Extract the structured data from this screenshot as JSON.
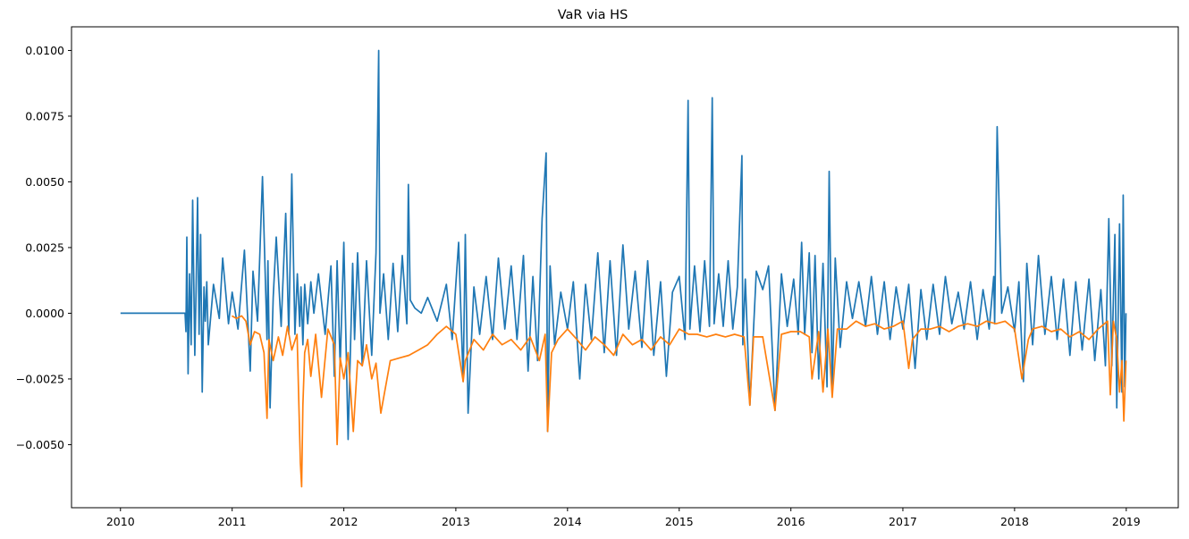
{
  "chart_data": {
    "type": "line",
    "title": "VaR via HS",
    "xlabel": "",
    "ylabel": "",
    "xlim": [
      "2009-07-25",
      "2019-06-20"
    ],
    "ylim": [
      -0.0074,
      0.0109
    ],
    "x_ticks": [
      "2010",
      "2011",
      "2012",
      "2013",
      "2014",
      "2015",
      "2016",
      "2017",
      "2018",
      "2019"
    ],
    "y_ticks": [
      "0.0100",
      "0.0075",
      "0.0050",
      "0.0025",
      "0.0000",
      "−0.0025",
      "−0.0050"
    ],
    "grid": false,
    "legend": "none",
    "series": [
      {
        "color": "#1f77b4",
        "x": [
          "2010-01-01",
          "2010-07-31",
          "2010-08-03",
          "2010-08-06",
          "2010-08-10",
          "2010-08-15",
          "2010-08-20",
          "2010-08-25",
          "2010-09-01",
          "2010-09-05",
          "2010-09-10",
          "2010-09-15",
          "2010-09-20",
          "2010-09-25",
          "2010-10-01",
          "2010-10-05",
          "2010-10-10",
          "2010-10-15",
          "2010-11-01",
          "2010-11-20",
          "2010-12-01",
          "2010-12-20",
          "2011-01-01",
          "2011-01-20",
          "2011-02-10",
          "2011-03-01",
          "2011-03-10",
          "2011-03-25",
          "2011-04-10",
          "2011-04-25",
          "2011-04-28",
          "2011-05-05",
          "2011-05-15",
          "2011-05-25",
          "2011-06-10",
          "2011-06-25",
          "2011-07-05",
          "2011-07-15",
          "2011-07-25",
          "2011-08-02",
          "2011-08-10",
          "2011-08-14",
          "2011-08-20",
          "2011-08-26",
          "2011-09-05",
          "2011-09-15",
          "2011-09-25",
          "2011-10-10",
          "2011-11-01",
          "2011-11-20",
          "2011-12-01",
          "2011-12-10",
          "2011-12-20",
          "2012-01-01",
          "2012-01-15",
          "2012-01-30",
          "2012-02-05",
          "2012-02-15",
          "2012-03-01",
          "2012-03-15",
          "2012-04-01",
          "2012-04-15",
          "2012-04-24",
          "2012-04-28",
          "2012-05-10",
          "2012-05-25",
          "2012-06-10",
          "2012-06-25",
          "2012-07-10",
          "2012-07-25",
          "2012-07-30",
          "2012-08-05",
          "2012-08-20",
          "2012-09-10",
          "2012-10-01",
          "2012-11-01",
          "2012-12-01",
          "2012-12-20",
          "2013-01-10",
          "2013-01-25",
          "2013-02-01",
          "2013-02-10",
          "2013-03-01",
          "2013-03-20",
          "2013-04-10",
          "2013-05-01",
          "2013-05-20",
          "2013-06-10",
          "2013-07-01",
          "2013-07-20",
          "2013-08-10",
          "2013-08-25",
          "2013-09-10",
          "2013-09-25",
          "2013-10-10",
          "2013-10-23",
          "2013-10-28",
          "2013-11-05",
          "2013-11-20",
          "2013-12-10",
          "2014-01-01",
          "2014-01-20",
          "2014-02-10",
          "2014-03-01",
          "2014-03-20",
          "2014-04-10",
          "2014-05-01",
          "2014-05-20",
          "2014-06-10",
          "2014-07-01",
          "2014-07-20",
          "2014-08-10",
          "2014-09-01",
          "2014-09-20",
          "2014-10-10",
          "2014-11-01",
          "2014-11-20",
          "2014-12-10",
          "2015-01-01",
          "2015-01-20",
          "2015-01-30",
          "2015-02-05",
          "2015-02-20",
          "2015-03-10",
          "2015-03-25",
          "2015-04-10",
          "2015-04-19",
          "2015-04-25",
          "2015-05-10",
          "2015-05-25",
          "2015-06-10",
          "2015-06-25",
          "2015-07-10",
          "2015-07-25",
          "2015-07-28",
          "2015-08-05",
          "2015-08-20",
          "2015-09-10",
          "2015-10-01",
          "2015-10-20",
          "2015-11-10",
          "2015-12-01",
          "2015-12-20",
          "2016-01-10",
          "2016-01-25",
          "2016-02-05",
          "2016-02-15",
          "2016-03-01",
          "2016-03-10",
          "2016-03-20",
          "2016-04-01",
          "2016-04-15",
          "2016-04-28",
          "2016-05-05",
          "2016-05-15",
          "2016-05-25",
          "2016-06-10",
          "2016-07-01",
          "2016-07-20",
          "2016-08-10",
          "2016-09-01",
          "2016-09-20",
          "2016-10-10",
          "2016-11-01",
          "2016-11-20",
          "2016-12-10",
          "2017-01-01",
          "2017-01-20",
          "2017-02-10",
          "2017-03-01",
          "2017-03-20",
          "2017-04-10",
          "2017-05-01",
          "2017-05-20",
          "2017-06-10",
          "2017-07-01",
          "2017-07-20",
          "2017-08-10",
          "2017-09-01",
          "2017-09-20",
          "2017-10-10",
          "2017-10-25",
          "2017-10-28",
          "2017-11-05",
          "2017-11-20",
          "2017-12-10",
          "2018-01-01",
          "2018-01-15",
          "2018-01-30",
          "2018-02-10",
          "2018-03-01",
          "2018-03-20",
          "2018-04-10",
          "2018-05-01",
          "2018-05-20",
          "2018-06-10",
          "2018-07-01",
          "2018-07-20",
          "2018-08-10",
          "2018-09-01",
          "2018-09-20",
          "2018-10-10",
          "2018-10-25",
          "2018-11-05",
          "2018-11-15",
          "2018-11-25",
          "2018-12-01",
          "2018-12-10",
          "2018-12-18",
          "2018-12-22",
          "2018-12-27",
          "2018-12-31"
        ],
        "y": [
          0.0,
          0.0,
          -0.0007,
          0.0029,
          -0.0023,
          0.0015,
          -0.0012,
          0.0043,
          -0.0016,
          0.0008,
          0.0044,
          -0.0008,
          0.003,
          -0.003,
          0.001,
          -0.0003,
          0.0012,
          -0.0012,
          0.0011,
          -0.0002,
          0.0021,
          -0.0004,
          0.0008,
          -0.0006,
          0.0024,
          -0.0022,
          0.0016,
          -0.0003,
          0.0052,
          -0.001,
          0.002,
          -0.0036,
          0.0006,
          0.0029,
          -0.0005,
          0.0038,
          -0.0008,
          0.0053,
          -0.0008,
          0.0015,
          -0.0005,
          0.001,
          -0.0012,
          0.0011,
          -0.0004,
          0.0012,
          0.0,
          0.0015,
          -0.0008,
          0.0018,
          -0.0024,
          0.002,
          -0.002,
          0.0027,
          -0.0048,
          0.0019,
          -0.001,
          0.0023,
          -0.002,
          0.002,
          -0.0016,
          0.0023,
          0.01,
          0.0,
          0.0015,
          -0.001,
          0.0019,
          -0.0007,
          0.0022,
          -0.0004,
          0.0049,
          0.0005,
          0.0002,
          0.0,
          0.0006,
          -0.0003,
          0.0011,
          -0.001,
          0.0027,
          -0.0026,
          0.003,
          -0.0038,
          0.001,
          -0.0008,
          0.0014,
          -0.001,
          0.0021,
          -0.0006,
          0.0018,
          -0.001,
          0.0022,
          -0.0022,
          0.0014,
          -0.0018,
          0.0036,
          0.0061,
          -0.0045,
          0.0018,
          -0.0012,
          0.0008,
          -0.0006,
          0.0012,
          -0.0025,
          0.0011,
          -0.001,
          0.0023,
          -0.0015,
          0.002,
          -0.0016,
          0.0026,
          -0.0006,
          0.0016,
          -0.0013,
          0.002,
          -0.0016,
          0.0012,
          -0.0024,
          0.0008,
          0.0014,
          -0.001,
          0.0081,
          -0.0006,
          0.0018,
          -0.0007,
          0.002,
          -0.0005,
          0.0082,
          -0.0004,
          0.0015,
          -0.0005,
          0.002,
          -0.0006,
          0.001,
          0.006,
          -0.0012,
          0.0013,
          -0.0035,
          0.0016,
          0.0009,
          0.0018,
          -0.0037,
          0.0015,
          -0.0005,
          0.0013,
          -0.0008,
          0.0027,
          -0.0008,
          0.0023,
          -0.0015,
          0.0022,
          -0.0025,
          0.0019,
          -0.0028,
          0.0054,
          -0.003,
          0.0021,
          -0.0013,
          0.0012,
          -0.0002,
          0.0012,
          -0.0005,
          0.0014,
          -0.0008,
          0.0012,
          -0.001,
          0.001,
          -0.0006,
          0.0011,
          -0.0021,
          0.0009,
          -0.001,
          0.0011,
          -0.0008,
          0.0014,
          -0.0004,
          0.0008,
          -0.0006,
          0.0012,
          -0.001,
          0.0009,
          -0.0006,
          0.0014,
          -0.0004,
          0.0071,
          0.0,
          0.001,
          -0.0007,
          0.0012,
          -0.0026,
          0.0019,
          -0.0012,
          0.0022,
          -0.0008,
          0.0014,
          -0.001,
          0.0013,
          -0.0016,
          0.0012,
          -0.0014,
          0.0013,
          -0.0018,
          0.0009,
          -0.002,
          0.0036,
          -0.002,
          0.003,
          -0.0036,
          0.0034,
          -0.003,
          0.0045,
          -0.0028,
          0.0
        ]
      },
      {
        "color": "#ff7f0e",
        "x": [
          "2010-12-31",
          "2011-01-15",
          "2011-02-01",
          "2011-02-15",
          "2011-03-01",
          "2011-03-15",
          "2011-04-01",
          "2011-04-15",
          "2011-04-25",
          "2011-05-01",
          "2011-05-15",
          "2011-06-01",
          "2011-06-15",
          "2011-07-01",
          "2011-07-15",
          "2011-08-01",
          "2011-08-12",
          "2011-08-16",
          "2011-08-20",
          "2011-08-26",
          "2011-09-05",
          "2011-09-15",
          "2011-10-01",
          "2011-10-20",
          "2011-11-10",
          "2011-12-01",
          "2011-12-10",
          "2011-12-20",
          "2012-01-01",
          "2012-01-15",
          "2012-02-01",
          "2012-02-15",
          "2012-03-01",
          "2012-03-15",
          "2012-04-01",
          "2012-04-15",
          "2012-05-01",
          "2012-06-01",
          "2012-07-01",
          "2012-08-01",
          "2012-09-01",
          "2012-10-01",
          "2012-11-01",
          "2012-12-01",
          "2013-01-01",
          "2013-01-25",
          "2013-02-01",
          "2013-03-01",
          "2013-04-01",
          "2013-05-01",
          "2013-06-01",
          "2013-07-01",
          "2013-08-01",
          "2013-09-01",
          "2013-10-01",
          "2013-10-20",
          "2013-10-28",
          "2013-11-10",
          "2013-12-01",
          "2014-01-01",
          "2014-02-01",
          "2014-03-01",
          "2014-04-01",
          "2014-05-01",
          "2014-06-01",
          "2014-07-01",
          "2014-08-01",
          "2014-09-01",
          "2014-10-01",
          "2014-11-01",
          "2014-12-01",
          "2015-01-01",
          "2015-02-01",
          "2015-03-01",
          "2015-04-01",
          "2015-05-01",
          "2015-06-01",
          "2015-07-01",
          "2015-08-01",
          "2015-08-20",
          "2015-09-01",
          "2015-10-01",
          "2015-11-10",
          "2015-12-01",
          "2016-01-01",
          "2016-02-01",
          "2016-03-01",
          "2016-03-10",
          "2016-04-01",
          "2016-04-15",
          "2016-05-01",
          "2016-05-15",
          "2016-06-01",
          "2016-07-01",
          "2016-08-01",
          "2016-09-01",
          "2016-10-01",
          "2016-11-01",
          "2016-12-01",
          "2017-01-01",
          "2017-01-20",
          "2017-02-01",
          "2017-03-01",
          "2017-04-01",
          "2017-05-01",
          "2017-06-01",
          "2017-07-01",
          "2017-08-01",
          "2017-09-01",
          "2017-10-01",
          "2017-11-01",
          "2017-12-01",
          "2018-01-01",
          "2018-01-25",
          "2018-02-15",
          "2018-03-01",
          "2018-04-01",
          "2018-05-01",
          "2018-06-01",
          "2018-07-01",
          "2018-08-01",
          "2018-09-01",
          "2018-10-01",
          "2018-11-01",
          "2018-11-10",
          "2018-11-20",
          "2018-12-01",
          "2018-12-10",
          "2018-12-18",
          "2018-12-24",
          "2018-12-31"
        ],
        "y": [
          -0.0001,
          -0.0002,
          -0.0001,
          -0.0003,
          -0.0012,
          -0.0007,
          -0.0008,
          -0.0015,
          -0.004,
          -0.001,
          -0.0018,
          -0.0009,
          -0.0016,
          -0.0005,
          -0.0014,
          -0.0008,
          -0.0057,
          -0.0066,
          -0.0035,
          -0.0015,
          -0.001,
          -0.0024,
          -0.0008,
          -0.0032,
          -0.0006,
          -0.0012,
          -0.005,
          -0.0017,
          -0.0025,
          -0.0015,
          -0.0045,
          -0.0018,
          -0.002,
          -0.0012,
          -0.0025,
          -0.0019,
          -0.0038,
          -0.0018,
          -0.0017,
          -0.0016,
          -0.0014,
          -0.0012,
          -0.0008,
          -0.0005,
          -0.0008,
          -0.0026,
          -0.0018,
          -0.001,
          -0.0014,
          -0.0008,
          -0.0012,
          -0.001,
          -0.0014,
          -0.0009,
          -0.0018,
          -0.0008,
          -0.0045,
          -0.0015,
          -0.001,
          -0.0006,
          -0.001,
          -0.0014,
          -0.0009,
          -0.0012,
          -0.0016,
          -0.0008,
          -0.0012,
          -0.001,
          -0.0014,
          -0.0009,
          -0.0012,
          -0.0006,
          -0.0008,
          -0.0008,
          -0.0009,
          -0.0008,
          -0.0009,
          -0.0008,
          -0.0009,
          -0.0035,
          -0.0009,
          -0.0009,
          -0.0037,
          -0.0008,
          -0.0007,
          -0.0007,
          -0.0009,
          -0.0025,
          -0.0007,
          -0.003,
          -0.0006,
          -0.0032,
          -0.0006,
          -0.0006,
          -0.0003,
          -0.0005,
          -0.0004,
          -0.0006,
          -0.0005,
          -0.0003,
          -0.0021,
          -0.001,
          -0.0006,
          -0.0006,
          -0.0005,
          -0.0007,
          -0.0005,
          -0.0004,
          -0.0005,
          -0.0003,
          -0.0004,
          -0.0003,
          -0.0006,
          -0.0025,
          -0.001,
          -0.0006,
          -0.0005,
          -0.0007,
          -0.0006,
          -0.0009,
          -0.0007,
          -0.001,
          -0.0006,
          -0.0003,
          -0.0031,
          -0.0003,
          -0.001,
          -0.003,
          -0.0018,
          -0.0041,
          -0.0018
        ]
      }
    ]
  }
}
